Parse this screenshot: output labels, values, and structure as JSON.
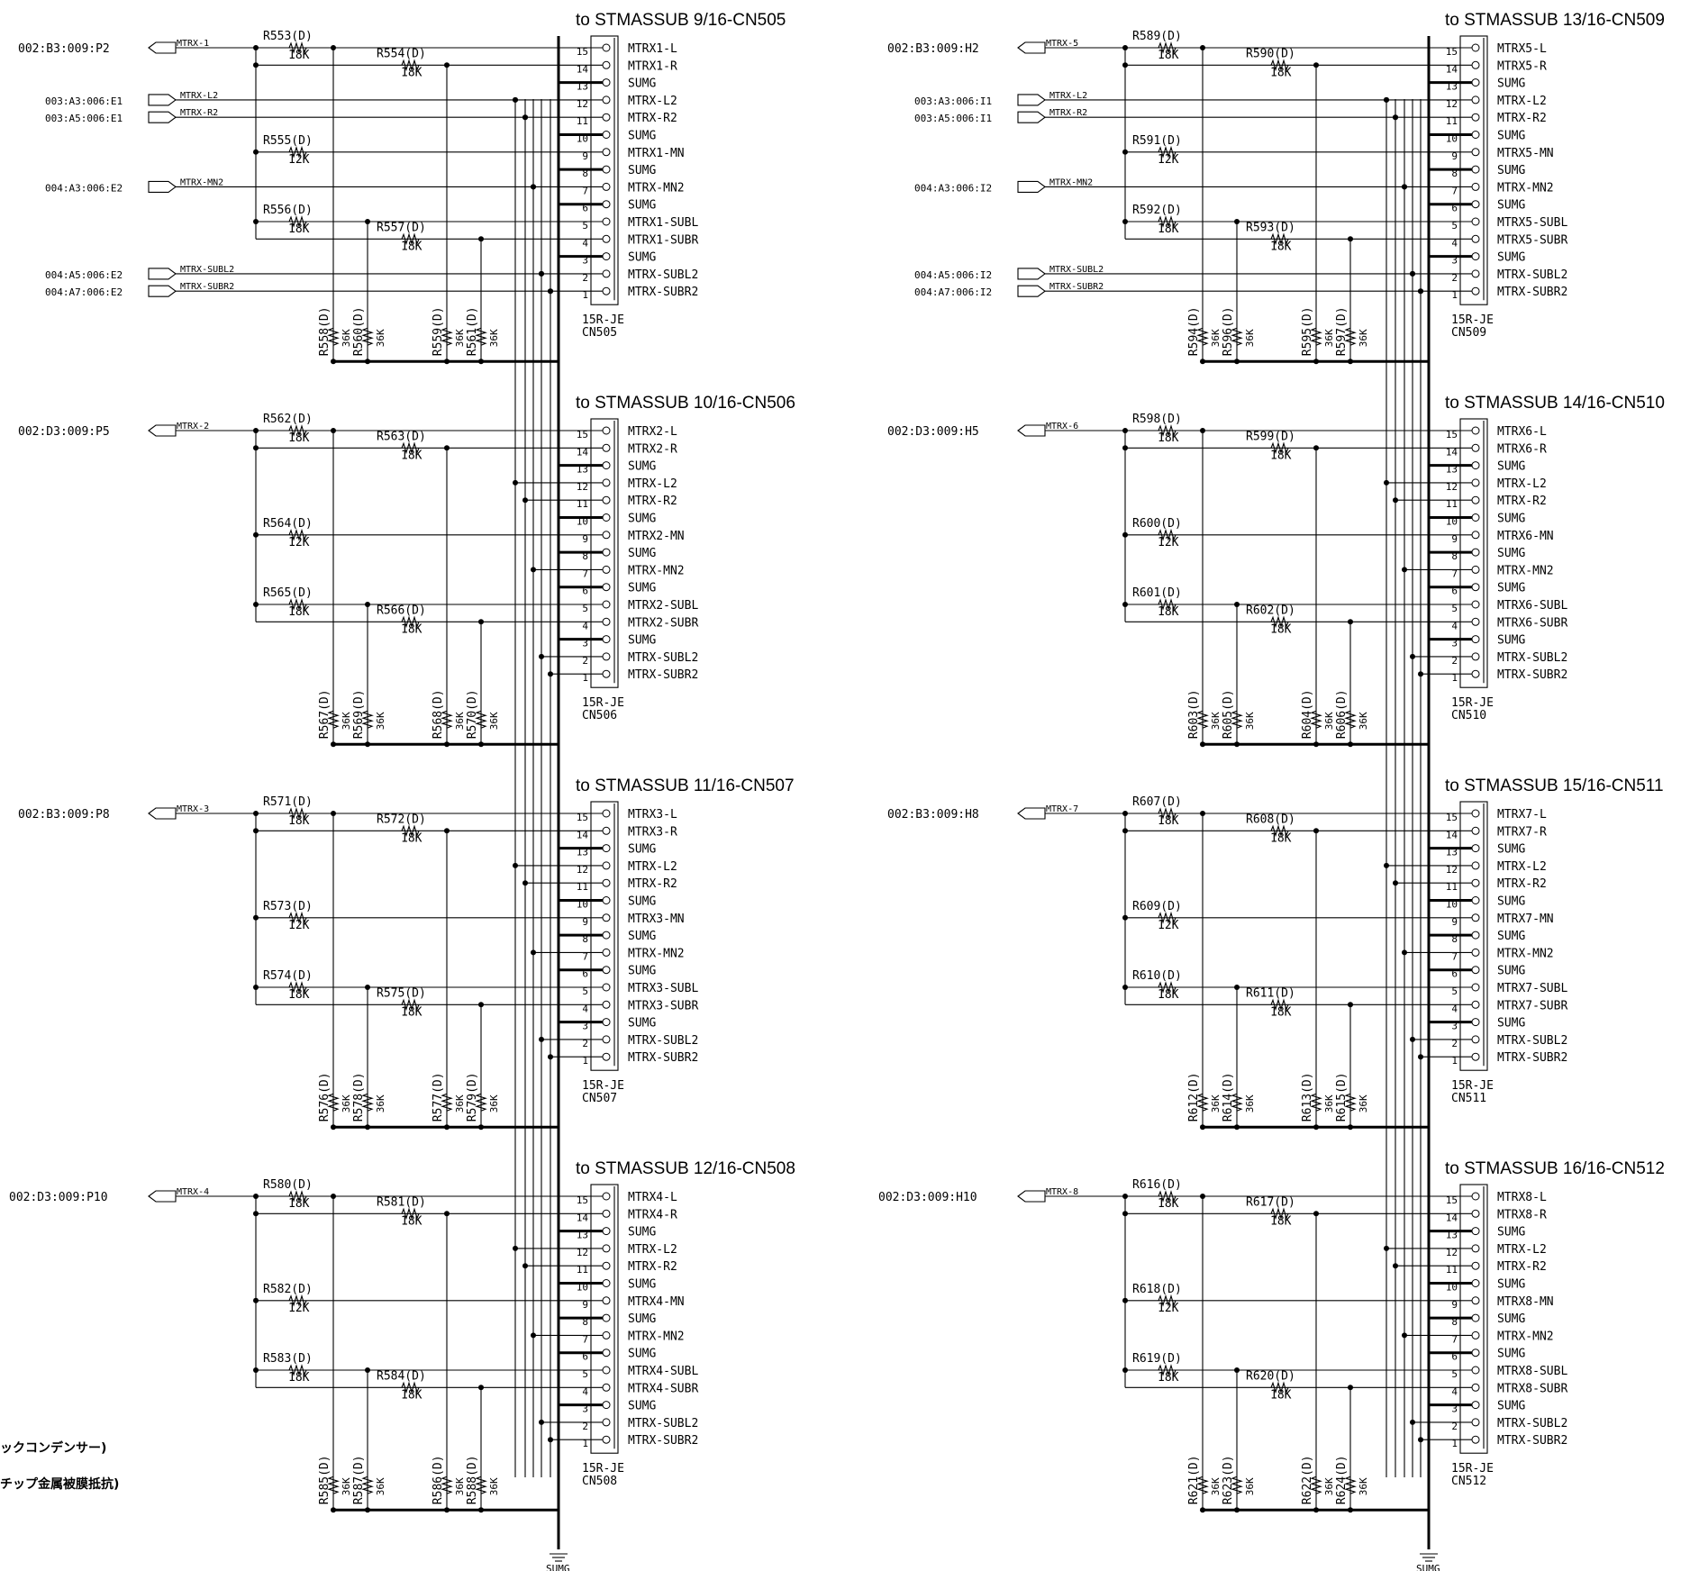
{
  "blocks": [
    {
      "title": "to STMASSUB 9/16-CN505",
      "ref": "CN505",
      "part": "15R-JE",
      "src": "002:B3:009:P2",
      "net": "MTRX-1",
      "mtrx": "MTRX1",
      "rIn": "R553(D)",
      "rR": "R554(D)",
      "rMn": "R555(D)",
      "rSl": "R556(D)",
      "rSr": "R557(D)",
      "pd": [
        "R558(D)",
        "R560(D)",
        "R559(D)",
        "R561(D)"
      ],
      "ports": [
        "003:A3:006:E1",
        "003:A5:006:E1",
        "004:A3:006:E2",
        "004:A5:006:E2",
        "004:A7:006:E2"
      ]
    },
    {
      "title": "to STMASSUB 10/16-CN506",
      "ref": "CN506",
      "part": "15R-JE",
      "src": "002:D3:009:P5",
      "net": "MTRX-2",
      "mtrx": "MTRX2",
      "rIn": "R562(D)",
      "rR": "R563(D)",
      "rMn": "R564(D)",
      "rSl": "R565(D)",
      "rSr": "R566(D)",
      "pd": [
        "R567(D)",
        "R569(D)",
        "R568(D)",
        "R570(D)"
      ]
    },
    {
      "title": "to STMASSUB 11/16-CN507",
      "ref": "CN507",
      "part": "15R-JE",
      "src": "002:B3:009:P8",
      "net": "MTRX-3",
      "mtrx": "MTRX3",
      "rIn": "R571(D)",
      "rR": "R572(D)",
      "rMn": "R573(D)",
      "rSl": "R574(D)",
      "rSr": "R575(D)",
      "pd": [
        "R576(D)",
        "R578(D)",
        "R577(D)",
        "R579(D)"
      ]
    },
    {
      "title": "to STMASSUB 12/16-CN508",
      "ref": "CN508",
      "part": "15R-JE",
      "src": "002:D3:009:P10",
      "net": "MTRX-4",
      "mtrx": "MTRX4",
      "rIn": "R580(D)",
      "rR": "R581(D)",
      "rMn": "R582(D)",
      "rSl": "R583(D)",
      "rSr": "R584(D)",
      "pd": [
        "R585(D)",
        "R587(D)",
        "R586(D)",
        "R588(D)"
      ]
    },
    {
      "title": "to STMASSUB 13/16-CN509",
      "ref": "CN509",
      "part": "15R-JE",
      "src": "002:B3:009:H2",
      "net": "MTRX-5",
      "mtrx": "MTRX5",
      "rIn": "R589(D)",
      "rR": "R590(D)",
      "rMn": "R591(D)",
      "rSl": "R592(D)",
      "rSr": "R593(D)",
      "pd": [
        "R594(D)",
        "R596(D)",
        "R595(D)",
        "R597(D)"
      ],
      "ports": [
        "003:A3:006:I1",
        "003:A5:006:I1",
        "004:A3:006:I2",
        "004:A5:006:I2",
        "004:A7:006:I2"
      ]
    },
    {
      "title": "to STMASSUB 14/16-CN510",
      "ref": "CN510",
      "part": "15R-JE",
      "src": "002:D3:009:H5",
      "net": "MTRX-6",
      "mtrx": "MTRX6",
      "rIn": "R598(D)",
      "rR": "R599(D)",
      "rMn": "R600(D)",
      "rSl": "R601(D)",
      "rSr": "R602(D)",
      "pd": [
        "R603(D)",
        "R605(D)",
        "R604(D)",
        "R606(D)"
      ]
    },
    {
      "title": "to STMASSUB 15/16-CN511",
      "ref": "CN511",
      "part": "15R-JE",
      "src": "002:B3:009:H8",
      "net": "MTRX-7",
      "mtrx": "MTRX7",
      "rIn": "R607(D)",
      "rR": "R608(D)",
      "rMn": "R609(D)",
      "rSl": "R610(D)",
      "rSr": "R611(D)",
      "pd": [
        "R612(D)",
        "R614(D)",
        "R613(D)",
        "R615(D)"
      ]
    },
    {
      "title": "to STMASSUB 16/16-CN512",
      "ref": "CN512",
      "part": "15R-JE",
      "src": "002:D3:009:H10",
      "net": "MTRX-8",
      "mtrx": "MTRX8",
      "rIn": "R616(D)",
      "rR": "R617(D)",
      "rMn": "R618(D)",
      "rSl": "R619(D)",
      "rSr": "R620(D)",
      "pd": [
        "R621(D)",
        "R623(D)",
        "R622(D)",
        "R624(D)"
      ]
    }
  ],
  "shared_nets": [
    "MTRX-L2",
    "MTRX-R2",
    "MTRX-MN2",
    "MTRX-SUBL2",
    "MTRX-SUBR2"
  ],
  "values": {
    "r18": "18K",
    "r12": "12K",
    "r36": "36K"
  },
  "ground": "SUMG",
  "notes": [
    "ックコンデンサー)",
    "チップ金属被膜抵抗)"
  ]
}
